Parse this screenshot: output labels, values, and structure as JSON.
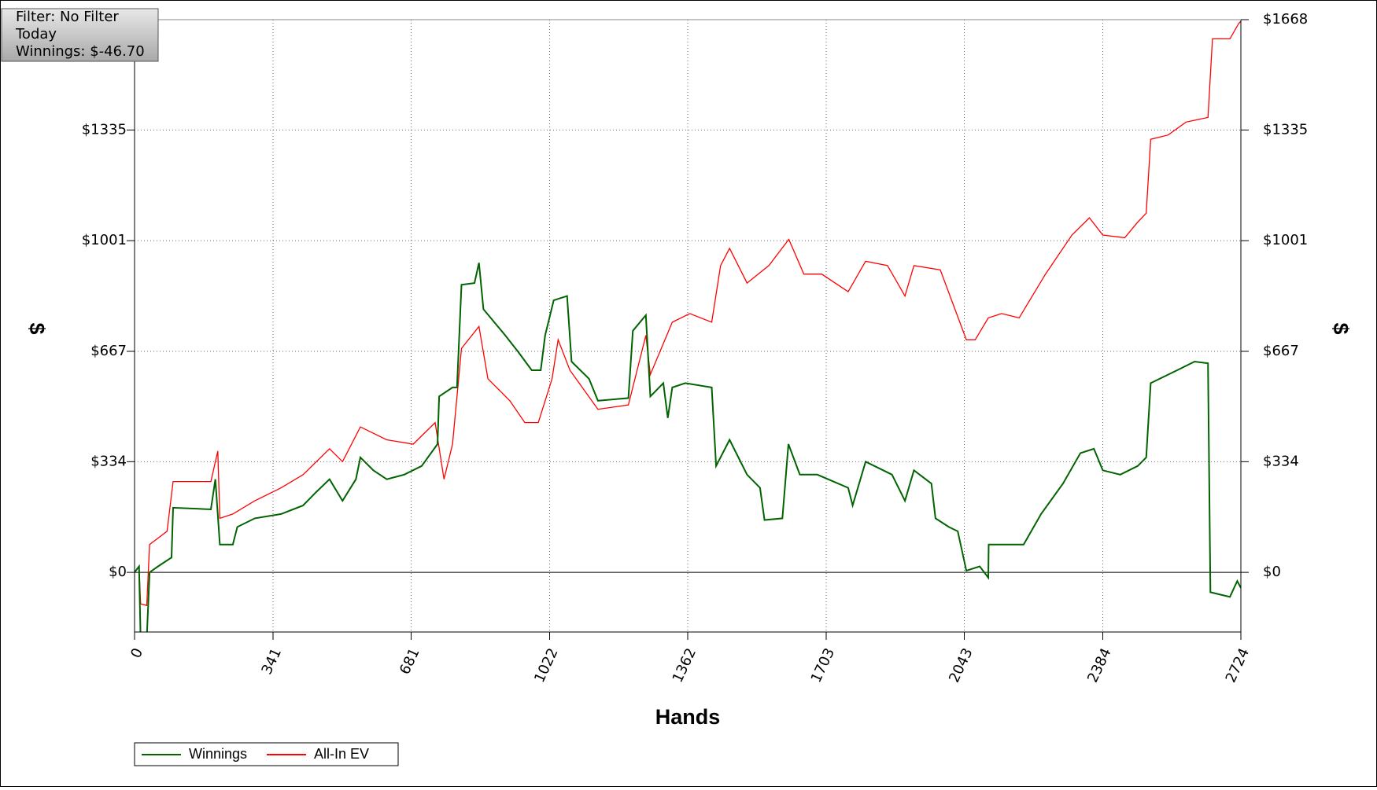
{
  "chart_data": {
    "type": "line",
    "info": [
      "Filter: No Filter",
      "Today",
      "Winnings: $-46.70"
    ],
    "xlabel": "Hands",
    "ylabel": "$",
    "y2label": "$",
    "xlim": [
      0,
      2724
    ],
    "xticks": [
      0,
      341,
      681,
      1022,
      1362,
      1703,
      2043,
      2384,
      2724
    ],
    "ylim": [
      -180,
      1668
    ],
    "yticks": [
      {
        "value": 0,
        "label": "$0"
      },
      {
        "value": 334,
        "label": "$334"
      },
      {
        "value": 667,
        "label": "$667"
      },
      {
        "value": 1001,
        "label": "$1001"
      },
      {
        "value": 1335,
        "label": "$1335"
      },
      {
        "value": 1668,
        "label": "$1668"
      }
    ],
    "y2lim": [
      -180,
      1668
    ],
    "y2ticks": [
      {
        "value": 0,
        "label": "$0"
      },
      {
        "value": 334,
        "label": "$334"
      },
      {
        "value": 667,
        "label": "$667"
      },
      {
        "value": 1001,
        "label": "$1001"
      },
      {
        "value": 1335,
        "label": "$1335"
      },
      {
        "value": 1668,
        "label": "$1668"
      }
    ],
    "grid": true,
    "legend": "bottom-left",
    "series": [
      {
        "name": "Winnings",
        "color": "#006400",
        "x": [
          0,
          11,
          15,
          30,
          37,
          58,
          91,
          95,
          188,
          199,
          210,
          242,
          253,
          296,
          361,
          415,
          447,
          480,
          512,
          545,
          556,
          588,
          621,
          664,
          707,
          746,
          750,
          783,
          794,
          805,
          837,
          848,
          859,
          913,
          946,
          978,
          1000,
          1011,
          1032,
          1065,
          1076,
          1119,
          1141,
          1216,
          1227,
          1259,
          1270,
          1302,
          1313,
          1324,
          1356,
          1421,
          1432,
          1465,
          1508,
          1540,
          1551,
          1595,
          1610,
          1638,
          1681,
          1757,
          1768,
          1800,
          1865,
          1897,
          1919,
          1962,
          1972,
          2005,
          2027,
          2048,
          2081,
          2102,
          2103,
          2135,
          2189,
          2232,
          2286,
          2329,
          2362,
          2384,
          2427,
          2470,
          2491,
          2502,
          2567,
          2610,
          2643,
          2649,
          2697,
          2715,
          2724
        ],
        "values": [
          0,
          18,
          -200,
          -200,
          0,
          18,
          45,
          195,
          190,
          281,
          84,
          84,
          137,
          163,
          176,
          202,
          242,
          281,
          216,
          281,
          347,
          308,
          281,
          295,
          321,
          387,
          531,
          558,
          558,
          868,
          873,
          934,
          794,
          715,
          663,
          610,
          610,
          715,
          821,
          834,
          636,
          584,
          518,
          526,
          729,
          776,
          531,
          571,
          466,
          558,
          571,
          558,
          321,
          400,
          295,
          255,
          158,
          163,
          387,
          295,
          295,
          255,
          202,
          334,
          295,
          216,
          308,
          268,
          163,
          137,
          124,
          5,
          18,
          -16,
          84,
          84,
          84,
          176,
          268,
          360,
          373,
          308,
          295,
          321,
          347,
          571,
          610,
          636,
          631,
          -60,
          -74,
          -26,
          -47
        ]
      },
      {
        "name": "All-In EV",
        "color": "#ff0000",
        "x": [
          0,
          11,
          15,
          30,
          37,
          80,
          95,
          188,
          205,
          210,
          242,
          296,
          361,
          415,
          480,
          512,
          556,
          621,
          686,
          740,
          762,
          783,
          805,
          848,
          870,
          924,
          961,
          994,
          1028,
          1043,
          1072,
          1141,
          1216,
          1259,
          1270,
          1324,
          1367,
          1421,
          1443,
          1465,
          1508,
          1562,
          1611,
          1648,
          1692,
          1757,
          1800,
          1854,
          1897,
          1919,
          1984,
          2016,
          2048,
          2070,
          2102,
          2135,
          2178,
          2243,
          2308,
          2351,
          2384,
          2438,
          2470,
          2491,
          2502,
          2545,
          2589,
          2643,
          2654,
          2697,
          2719,
          2724
        ],
        "values": [
          0,
          18,
          -95,
          -100,
          84,
          124,
          274,
          274,
          366,
          163,
          176,
          216,
          255,
          295,
          373,
          334,
          439,
          400,
          387,
          452,
          281,
          387,
          676,
          742,
          584,
          518,
          452,
          452,
          584,
          702,
          610,
          492,
          505,
          715,
          597,
          755,
          781,
          755,
          926,
          978,
          873,
          926,
          1005,
          900,
          900,
          847,
          939,
          926,
          834,
          926,
          913,
          807,
          702,
          702,
          768,
          781,
          768,
          900,
          1018,
          1070,
          1018,
          1010,
          1057,
          1084,
          1307,
          1320,
          1359,
          1373,
          1610,
          1610,
          1657,
          1663
        ]
      }
    ]
  }
}
